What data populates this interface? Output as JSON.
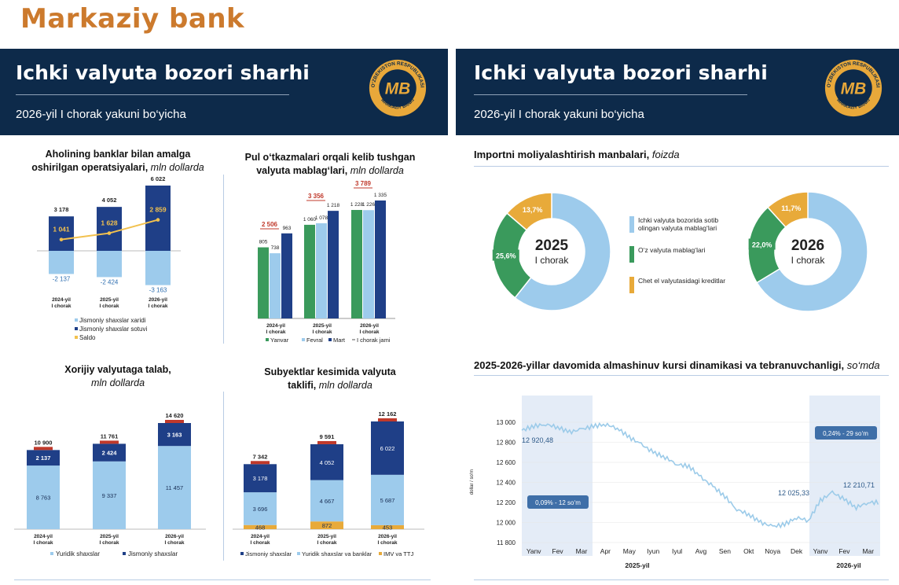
{
  "brand": "Markaziy bank",
  "left_header": {
    "title": "Ichki valyuta  bozori sharhi",
    "subtitle": "2026-yil I chorak yakuni bo‘yicha"
  },
  "right_header": {
    "title": "Ichki valyuta  bozori sharhi",
    "subtitle": "2026-yil I chorak yakuni bo‘yicha"
  },
  "logo": {
    "ring_text": "O‘ZBEKISTON RESPUBLIKASI",
    "bottom_text": "MARKAZIY BANKI",
    "mark": "MB"
  },
  "colors": {
    "navy": "#0d2a4a",
    "dark_blue": "#1f3f87",
    "light_blue": "#9dcbec",
    "green": "#3a9a5c",
    "orange": "#e8aa3a",
    "brand": "#cc7a2d",
    "red": "#c0392b"
  },
  "charts": {
    "c1": {
      "title": "Aholining banklar bilan amalga oshirilgan operatsiyalari,",
      "title_line1": "Aholining banklar bilan amalga",
      "title_line2": "oshirilgan operatsiyalari,",
      "unit": "mln dollarda",
      "legend": [
        "Jismoniy shaxslar xaridi",
        "Jismoniy shaxslar sotuvi",
        "Saldo"
      ]
    },
    "c2": {
      "title_line1": "Pul o‘tkazmalari orqali kelib tushgan",
      "title_line2": "valyuta mablag‘lari,",
      "unit": "mln dollarda",
      "legend": [
        "Yanvar",
        "Fevral",
        "Mart",
        "I chorak jami"
      ]
    },
    "c3": {
      "title_line1": "Xorijiy valyutaga talab,",
      "unit": "mln dollarda",
      "legend": [
        "Yuridik shaxslar",
        "Jismoniy shaxslar"
      ]
    },
    "c4": {
      "title_line1": "Subyektlar kesimida valyuta",
      "title_line2": "taklifi,",
      "unit": "mln dollarda",
      "legend": [
        "Jismoniy shaxslar",
        "Yuridik shaxslar va banklar",
        "IMV va TTJ"
      ]
    },
    "c5": {
      "title": "Importni moliyalashtirish manbalari,",
      "unit": "foizda",
      "legend": [
        "Ichki valyuta bozorida sotib olingan valyuta mablag‘lari",
        "O‘z valyuta mablag‘lari",
        "Chet el valyutasidagi kreditlar"
      ],
      "legend_lines": [
        [
          "Ichki valyuta bozorida sotib",
          "olingan valyuta mablag‘lari"
        ],
        [
          "O‘z valyuta mablag‘lari"
        ],
        [
          "Chet el valyutasidagi kreditlar"
        ]
      ]
    },
    "c6": {
      "title": "2025-2026-yillar davomida almashinuv kursi dinamikasi va tebranuvchanligi,",
      "unit": "so‘mda",
      "ylabel": "dollar / so‘m"
    }
  },
  "chart_data": [
    {
      "type": "bar",
      "title": "Aholining banklar bilan amalga oshirilgan operatsiyalari, mln dollarda",
      "categories": [
        [
          "2024-yil",
          "I chorak"
        ],
        [
          "2025-yil",
          "I chorak"
        ],
        [
          "2026-yil",
          "I chorak"
        ]
      ],
      "series": [
        {
          "name": "Jismoniy shaxslar xaridi",
          "values": [
            -2137,
            -2424,
            -3163
          ],
          "labels": [
            "-2 137",
            "-2 424",
            "-3 163"
          ]
        },
        {
          "name": "Jismoniy shaxslar sotuvi",
          "values": [
            3178,
            4052,
            6022
          ],
          "labels": [
            "3 178",
            "4 052",
            "6 022"
          ]
        },
        {
          "name": "Saldo",
          "type": "line",
          "values": [
            1041,
            1628,
            2859
          ],
          "labels": [
            "1 041",
            "1 628",
            "2 859"
          ]
        }
      ],
      "ylim": [
        -3500,
        6500
      ]
    },
    {
      "type": "bar",
      "title": "Pul o‘tkazmalari orqali kelib tushgan valyuta mablag‘lari, mln dollarda",
      "categories": [
        [
          "2024-yil",
          "I chorak"
        ],
        [
          "2025-yil",
          "I chorak"
        ],
        [
          "2026-yil",
          "I chorak"
        ]
      ],
      "series": [
        {
          "name": "Yanvar",
          "values": [
            805,
            1060,
            1228
          ],
          "labels": [
            "805",
            "1 060",
            "1 228"
          ]
        },
        {
          "name": "Fevral",
          "values": [
            738,
            1078,
            1226
          ],
          "labels": [
            "738",
            "1 078",
            "1 226"
          ]
        },
        {
          "name": "Mart",
          "values": [
            963,
            1218,
            1335
          ],
          "labels": [
            "963",
            "1 218",
            "1 335"
          ]
        },
        {
          "name": "I chorak jami",
          "values": [
            2506,
            3356,
            3789
          ],
          "labels": [
            "2 506",
            "3 356",
            "3 789"
          ]
        }
      ],
      "ylim": [
        0,
        1400
      ]
    },
    {
      "type": "bar",
      "stacked": true,
      "title": "Xorijiy valyutaga talab, mln dollarda",
      "categories": [
        [
          "2024-yil",
          "I chorak"
        ],
        [
          "2025-yil",
          "I chorak"
        ],
        [
          "2026-yil",
          "I chorak"
        ]
      ],
      "series": [
        {
          "name": "Yuridik shaxslar",
          "values": [
            8763,
            9337,
            11457
          ],
          "labels": [
            "8 763",
            "9 337",
            "11 457"
          ]
        },
        {
          "name": "Jismoniy shaxslar",
          "values": [
            2137,
            2424,
            3163
          ],
          "labels": [
            "2 137",
            "2 424",
            "3 163"
          ]
        }
      ],
      "totals": [
        10900,
        11761,
        14620
      ],
      "total_labels": [
        "10 900",
        "11 761",
        "14 620"
      ],
      "ylim": [
        0,
        15500
      ]
    },
    {
      "type": "bar",
      "stacked": true,
      "title": "Subyektlar kesimida valyuta taklifi, mln dollarda",
      "categories": [
        [
          "2024-yil",
          "I chorak"
        ],
        [
          "2025-yil",
          "I chorak"
        ],
        [
          "2026-yil",
          "I chorak"
        ]
      ],
      "series": [
        {
          "name": "IMV va TTJ",
          "values": [
            468,
            872,
            453
          ],
          "labels": [
            "468",
            "872",
            "453"
          ]
        },
        {
          "name": "Yuridik shaxslar va banklar",
          "values": [
            3696,
            4667,
            5687
          ],
          "labels": [
            "3 696",
            "4 667",
            "5 687"
          ]
        },
        {
          "name": "Jismoniy shaxslar",
          "values": [
            3178,
            4052,
            6022
          ],
          "labels": [
            "3 178",
            "4 052",
            "6 022"
          ]
        }
      ],
      "totals": [
        7342,
        9591,
        12162
      ],
      "total_labels": [
        "7 342",
        "9 591",
        "12 162"
      ],
      "ylim": [
        0,
        12800
      ]
    },
    {
      "type": "pie",
      "donut": true,
      "title": "Importni moliyalashtirish manbalari, foizda",
      "center_title": "2025",
      "center_sub": "I chorak",
      "slices": [
        {
          "name": "Ichki valyuta bozorida sotib olingan valyuta mablag‘lari",
          "value": 60.7,
          "label": "60,7%"
        },
        {
          "name": "O‘z valyuta mablag‘lari",
          "value": 25.6,
          "label": "25,6%"
        },
        {
          "name": "Chet el valyutasidagi kreditlar",
          "value": 13.7,
          "label": "13,7%"
        }
      ]
    },
    {
      "type": "pie",
      "donut": true,
      "title": "Importni moliyalashtirish manbalari, foizda",
      "center_title": "2026",
      "center_sub": "I chorak",
      "slices": [
        {
          "name": "Ichki valyuta bozorida sotib olingan valyuta mablag‘lari",
          "value": 66.3,
          "label": "66,3%"
        },
        {
          "name": "O‘z valyuta mablag‘lari",
          "value": 22.0,
          "label": "22,0%"
        },
        {
          "name": "Chet el valyutasidagi kreditlar",
          "value": 11.7,
          "label": "11,7%"
        }
      ]
    },
    {
      "type": "line",
      "title": "2025-2026-yillar davomida almashinuv kursi dinamikasi va tebranuvchanligi, so‘mda",
      "ylabel": "dollar / so‘m",
      "ylim": [
        11800,
        13000
      ],
      "yticks": [
        "13 000",
        "12 800",
        "12 600",
        "12 400",
        "12 200",
        "12 000",
        "11 800"
      ],
      "ytick_values": [
        13000,
        12800,
        12600,
        12400,
        12200,
        12000,
        11800
      ],
      "months": [
        "Yanv",
        "Fev",
        "Mar",
        "Apr",
        "May",
        "Iyun",
        "Iyul",
        "Avg",
        "Sen",
        "Okt",
        "Noya",
        "Dek",
        "Yanv",
        "Fev",
        "Mar"
      ],
      "year_labels": [
        "2025-yil",
        "2026-yil"
      ],
      "x_months": [
        0,
        0.5,
        1,
        1.5,
        2,
        2.5,
        3,
        3.5,
        4,
        4.5,
        5,
        5.5,
        6,
        6.5,
        7,
        7.5,
        8,
        8.5,
        9,
        9.5,
        10,
        10.5,
        11,
        11.5,
        12,
        12.5,
        13,
        13.5,
        14,
        14.5
      ],
      "values": [
        12920,
        12960,
        12980,
        12950,
        12900,
        12930,
        12960,
        12980,
        12940,
        12850,
        12780,
        12700,
        12650,
        12580,
        12560,
        12450,
        12360,
        12260,
        12130,
        12080,
        12000,
        11960,
        11980,
        12050,
        12020,
        12220,
        12300,
        12230,
        12150,
        12200
      ],
      "annotations": [
        {
          "text": "12 920,48"
        },
        {
          "text": "12 025,33"
        },
        {
          "text": "12 210,71"
        }
      ],
      "highlights": [
        {
          "text": "0,09% - 12 so‘m"
        },
        {
          "text": "0,24% - 29 so‘m"
        }
      ]
    }
  ]
}
